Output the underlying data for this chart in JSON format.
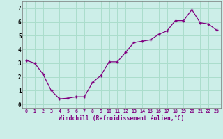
{
  "x": [
    0,
    1,
    2,
    3,
    4,
    5,
    6,
    7,
    8,
    9,
    10,
    11,
    12,
    13,
    14,
    15,
    16,
    17,
    18,
    19,
    20,
    21,
    22,
    23
  ],
  "y": [
    3.2,
    3.0,
    2.2,
    1.0,
    0.4,
    0.45,
    0.55,
    0.55,
    1.6,
    2.1,
    3.1,
    3.1,
    3.8,
    4.5,
    4.6,
    4.7,
    5.1,
    5.35,
    6.1,
    6.1,
    6.9,
    5.95,
    5.85,
    5.4
  ],
  "line_color": "#800080",
  "marker": "+",
  "bg_color": "#cceee8",
  "grid_color": "#aaddcc",
  "xlabel": "Windchill (Refroidissement éolien,°C)",
  "xlabel_color": "#800080",
  "ylabel_ticks": [
    0,
    1,
    2,
    3,
    4,
    5,
    6,
    7
  ],
  "xtick_labels": [
    "0",
    "1",
    "2",
    "3",
    "4",
    "5",
    "6",
    "7",
    "8",
    "9",
    "10",
    "11",
    "12",
    "13",
    "14",
    "15",
    "16",
    "17",
    "18",
    "19",
    "20",
    "21",
    "22",
    "23"
  ],
  "ylim": [
    -0.3,
    7.5
  ],
  "xlim": [
    -0.5,
    23.5
  ],
  "tick_color": "#800080",
  "ytick_color": "#000000"
}
